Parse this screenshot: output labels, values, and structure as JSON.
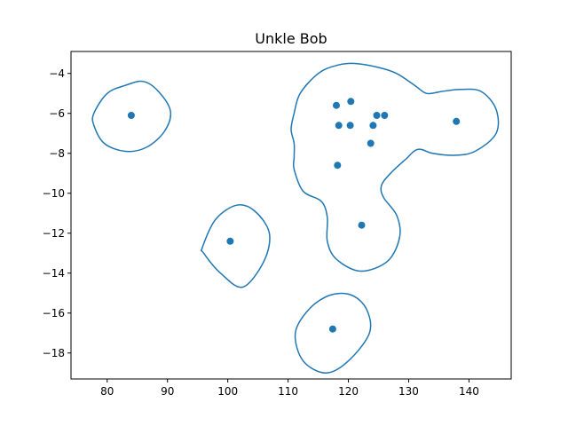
{
  "chart_data": {
    "type": "scatter",
    "title": "Unkle Bob",
    "xlabel": "",
    "ylabel": "",
    "xlim": [
      74,
      147
    ],
    "ylim": [
      -19.3,
      -2.9
    ],
    "xticks": [
      80,
      90,
      100,
      110,
      120,
      130,
      140
    ],
    "yticks": [
      -4,
      -6,
      -8,
      -10,
      -12,
      -14,
      -16,
      -18
    ],
    "grid": false,
    "series": [
      {
        "kind": "points",
        "color": "#1f77b4",
        "x": [
          84.0,
          100.4,
          117.4,
          118.0,
          120.4,
          118.4,
          120.3,
          124.7,
          126.0,
          124.1,
          123.7,
          118.2,
          122.2,
          137.9
        ],
        "y": [
          -6.1,
          -12.4,
          -16.8,
          -5.6,
          -5.4,
          -6.6,
          -6.6,
          -6.1,
          -6.1,
          -6.6,
          -7.5,
          -8.6,
          -11.6,
          -6.4
        ]
      },
      {
        "kind": "contour",
        "color": "#1f77b4",
        "curves": [
          {
            "name": "outline-left",
            "points": [
              [
                77.8,
                -6.0
              ],
              [
                80.0,
                -5.0
              ],
              [
                83.0,
                -4.6
              ],
              [
                86.0,
                -4.4
              ],
              [
                88.5,
                -4.9
              ],
              [
                90.5,
                -5.9
              ],
              [
                89.5,
                -6.9
              ],
              [
                86.5,
                -7.7
              ],
              [
                83.0,
                -7.9
              ],
              [
                79.5,
                -7.5
              ],
              [
                77.8,
                -6.6
              ]
            ]
          },
          {
            "name": "outline-middle",
            "points": [
              [
                95.8,
                -12.7
              ],
              [
                98.0,
                -11.3
              ],
              [
                101.5,
                -10.6
              ],
              [
                104.5,
                -10.9
              ],
              [
                106.9,
                -12.0
              ],
              [
                106.0,
                -13.4
              ],
              [
                102.5,
                -14.7
              ],
              [
                98.8,
                -14.0
              ],
              [
                96.0,
                -13.0
              ]
            ]
          },
          {
            "name": "outline-bottom",
            "points": [
              [
                111.2,
                -17.0
              ],
              [
                113.5,
                -15.8
              ],
              [
                117.0,
                -15.1
              ],
              [
                120.5,
                -15.1
              ],
              [
                123.0,
                -15.8
              ],
              [
                123.5,
                -17.0
              ],
              [
                120.0,
                -18.4
              ],
              [
                116.3,
                -19.0
              ],
              [
                112.5,
                -18.4
              ]
            ]
          },
          {
            "name": "outline-cluster",
            "points": [
              [
                111.0,
                -6.0
              ],
              [
                112.0,
                -5.0
              ],
              [
                115.0,
                -4.0
              ],
              [
                118.0,
                -3.6
              ],
              [
                121.0,
                -3.5
              ],
              [
                125.0,
                -3.7
              ],
              [
                128.0,
                -4.0
              ],
              [
                131.0,
                -4.6
              ],
              [
                133.0,
                -5.0
              ],
              [
                135.5,
                -4.9
              ],
              [
                138.5,
                -4.8
              ],
              [
                142.0,
                -4.9
              ],
              [
                144.5,
                -5.8
              ],
              [
                144.5,
                -7.0
              ],
              [
                141.0,
                -7.9
              ],
              [
                137.5,
                -8.1
              ],
              [
                134.0,
                -8.0
              ],
              [
                131.5,
                -7.8
              ],
              [
                129.5,
                -8.3
              ],
              [
                127.0,
                -9.0
              ],
              [
                125.5,
                -9.6
              ],
              [
                125.8,
                -10.2
              ],
              [
                128.0,
                -11.1
              ],
              [
                128.5,
                -12.2
              ],
              [
                126.5,
                -13.4
              ],
              [
                122.0,
                -13.9
              ],
              [
                118.0,
                -13.3
              ],
              [
                116.5,
                -12.4
              ],
              [
                116.5,
                -11.2
              ],
              [
                115.5,
                -10.4
              ],
              [
                112.5,
                -9.9
              ],
              [
                111.0,
                -8.8
              ],
              [
                111.0,
                -8.2
              ],
              [
                111.0,
                -7.5
              ],
              [
                110.5,
                -6.8
              ]
            ]
          }
        ]
      }
    ]
  }
}
